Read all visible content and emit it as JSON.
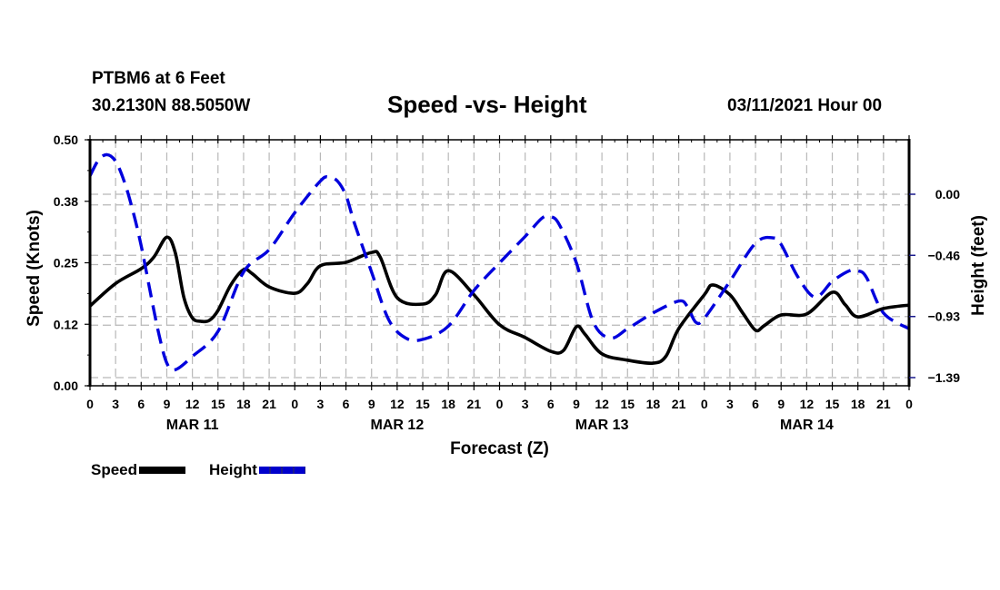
{
  "header": {
    "station": "PTBM6 at 6 Feet",
    "coordinates": "30.2130N 88.5050W",
    "title": "Speed -vs- Height",
    "datetime": "03/11/2021 Hour 00"
  },
  "legend": {
    "items": [
      {
        "label": "Speed",
        "color": "#000000",
        "style": "solid"
      },
      {
        "label": "Height",
        "color": "#0000dd",
        "style": "dashed"
      }
    ]
  },
  "chart_data": {
    "type": "line",
    "title": "Speed -vs- Height",
    "xlabel": "Forecast (Z)",
    "ylabel": "Speed (Knots)",
    "y2label": "Height (feet)",
    "x_unit": "forecast hour from 03/11/2021 00Z",
    "xlim": [
      0,
      96
    ],
    "ylim": [
      0,
      0.5
    ],
    "y2lim": [
      -1.5,
      0.31
    ],
    "grid": true,
    "legend_position": "bottom-left",
    "x_tick_labels": [
      "0",
      "3",
      "6",
      "9",
      "12",
      "15",
      "18",
      "21",
      "0",
      "3",
      "6",
      "9",
      "12",
      "15",
      "18",
      "21",
      "0",
      "3",
      "6",
      "9",
      "12",
      "15",
      "18",
      "21",
      "0",
      "3",
      "6",
      "9",
      "12",
      "15",
      "18",
      "21",
      "0"
    ],
    "x_tick_hours": [
      0,
      3,
      6,
      9,
      12,
      15,
      18,
      21,
      24,
      27,
      30,
      33,
      36,
      39,
      42,
      45,
      48,
      51,
      54,
      57,
      60,
      63,
      66,
      69,
      72,
      75,
      78,
      81,
      84,
      87,
      90,
      93,
      96
    ],
    "day_labels": [
      {
        "label": "MAR 11",
        "hour": 12
      },
      {
        "label": "MAR 12",
        "hour": 36
      },
      {
        "label": "MAR 13",
        "hour": 60
      },
      {
        "label": "MAR 14",
        "hour": 84
      }
    ],
    "y_ticks": [
      "0.00",
      "0.12",
      "0.25",
      "0.38",
      "0.50"
    ],
    "y_tick_values": [
      0,
      0.125,
      0.25,
      0.375,
      0.5
    ],
    "y2_ticks": [
      "0.00",
      "-0.46",
      "-0.93",
      "-1.39"
    ],
    "y2_tick_values": [
      0,
      -0.463,
      -0.927,
      -1.39
    ],
    "series": [
      {
        "name": "Speed",
        "axis": "left",
        "color": "#000000",
        "style": "solid",
        "x": [
          0,
          3,
          6,
          7.5,
          9,
          10,
          11,
          12,
          13,
          14,
          15,
          16.5,
          18,
          19,
          21,
          24,
          25.5,
          27,
          30,
          33,
          34,
          36,
          39,
          40.5,
          42,
          45,
          48,
          51,
          54,
          55.5,
          57,
          58,
          60,
          63,
          66,
          67.5,
          69,
          72,
          73,
          75,
          76.5,
          78,
          79,
          81,
          84,
          87,
          88.5,
          90,
          93,
          96
        ],
        "values": [
          0.162,
          0.208,
          0.238,
          0.262,
          0.302,
          0.27,
          0.18,
          0.138,
          0.131,
          0.133,
          0.153,
          0.205,
          0.236,
          0.228,
          0.201,
          0.188,
          0.208,
          0.244,
          0.251,
          0.271,
          0.262,
          0.179,
          0.166,
          0.185,
          0.234,
          0.185,
          0.124,
          0.098,
          0.07,
          0.072,
          0.12,
          0.105,
          0.065,
          0.052,
          0.046,
          0.06,
          0.116,
          0.185,
          0.205,
          0.185,
          0.148,
          0.113,
          0.122,
          0.144,
          0.146,
          0.19,
          0.165,
          0.14,
          0.157,
          0.164
        ]
      },
      {
        "name": "Height",
        "axis": "right",
        "color": "#0000dd",
        "style": "dashed",
        "x": [
          0,
          1,
          2,
          3,
          4,
          5,
          6,
          7,
          8,
          9,
          10,
          12,
          15,
          18,
          21,
          24,
          27,
          28,
          29,
          30,
          31,
          33,
          35,
          37,
          39,
          42,
          45,
          48,
          51,
          53,
          54,
          55,
          57,
          59,
          61,
          63,
          66,
          69,
          70,
          71,
          72,
          75,
          78,
          80,
          81,
          83,
          85,
          87,
          89,
          90,
          91,
          93,
          96
        ],
        "values": [
          0.14,
          0.26,
          0.3,
          0.25,
          0.1,
          -0.12,
          -0.39,
          -0.72,
          -1.04,
          -1.28,
          -1.33,
          -1.23,
          -1.04,
          -0.59,
          -0.42,
          -0.14,
          0.1,
          0.13,
          0.1,
          -0.01,
          -0.22,
          -0.59,
          -0.95,
          -1.09,
          -1.1,
          -1.0,
          -0.73,
          -0.52,
          -0.32,
          -0.18,
          -0.17,
          -0.23,
          -0.52,
          -0.97,
          -1.09,
          -1.02,
          -0.9,
          -0.81,
          -0.85,
          -0.97,
          -0.94,
          -0.66,
          -0.37,
          -0.33,
          -0.38,
          -0.63,
          -0.78,
          -0.66,
          -0.58,
          -0.58,
          -0.63,
          -0.9,
          -1.02
        ]
      }
    ]
  }
}
